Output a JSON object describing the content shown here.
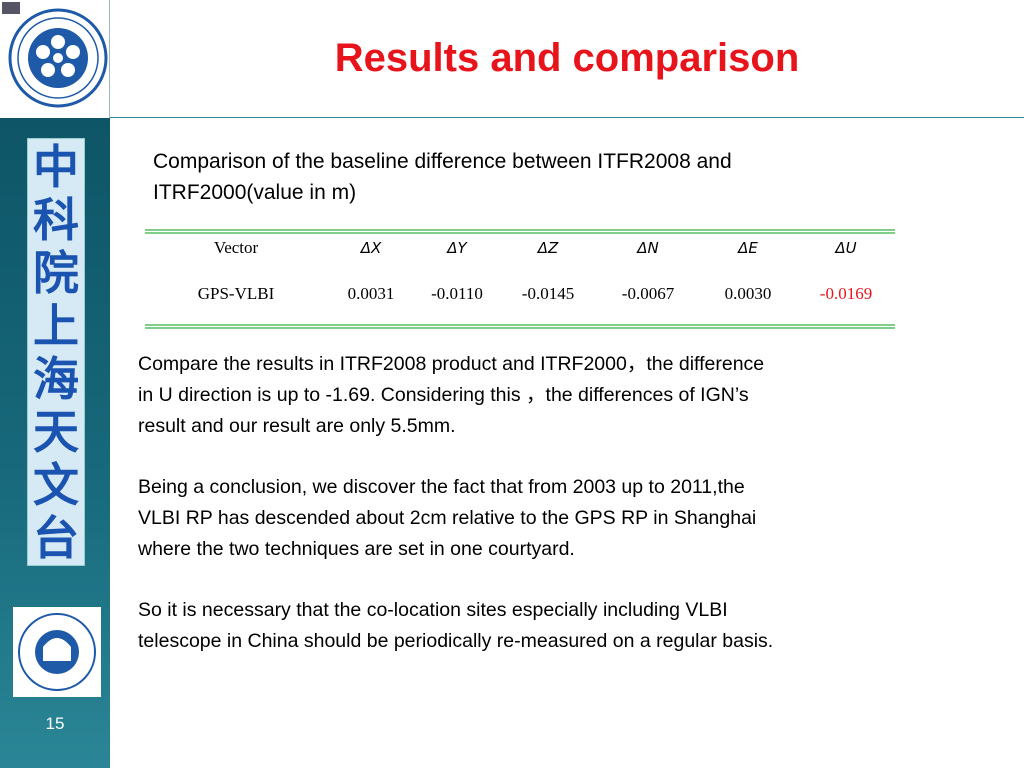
{
  "header": {
    "title": "Results and comparison"
  },
  "sidebar_text": [
    "中",
    "科",
    "院",
    "上",
    "海",
    "天",
    "文",
    "台"
  ],
  "page_number": "15",
  "table": {
    "caption": [
      "Comparison of the baseline difference between  ITFR2008 and",
      "ITRF2000(value in m)"
    ],
    "columns": [
      "Vector",
      "ΔX",
      "ΔY",
      "ΔZ",
      "ΔN",
      "ΔE",
      "ΔU"
    ],
    "rows": [
      [
        "GPS-VLBI",
        "0.0031",
        "-0.0110",
        "-0.0145",
        "-0.0067",
        "0.0030",
        "-0.0169"
      ]
    ],
    "highlight_color": "#e8141b"
  },
  "paragraphs": [
    [
      "Compare the results in ITRF2008 product and ITRF2000，the difference",
      "in U direction is up to -1.69. Considering this ，the differences of IGN’s",
      "result and our result are only 5.5mm."
    ],
    [
      "Being a conclusion, we discover the fact that from 2003 up to 2011,the",
      "VLBI RP has descended about 2cm relative to the  GPS RP in Shanghai",
      "where the two techniques are set in one courtyard."
    ],
    [
      "So it is necessary that the co-location sites especially including VLBI",
      "telescope in China should be periodically re-measured on a regular basis."
    ]
  ]
}
